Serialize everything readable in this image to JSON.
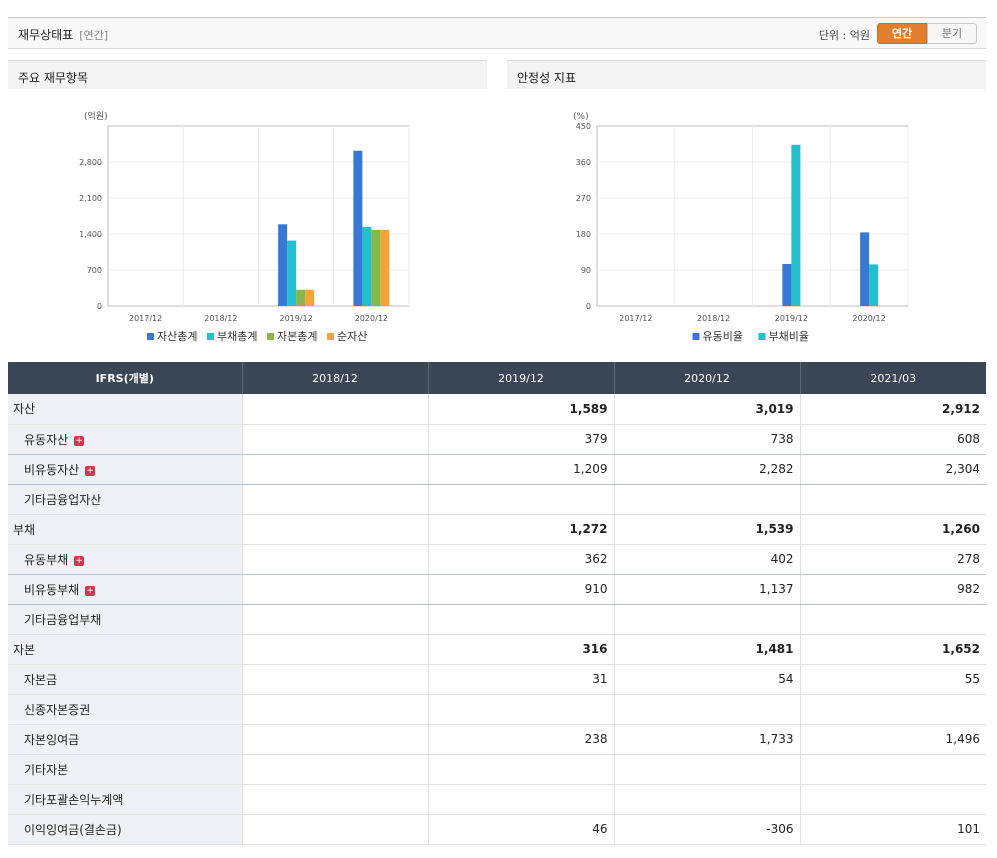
{
  "header": {
    "title": "재무상태표",
    "subtitle": "[연간]",
    "unit_label": "단위 : 억원",
    "toggle_annual": "연간",
    "toggle_quarter": "분기"
  },
  "panels": {
    "left_title": "주요 재무항목",
    "right_title": "안정성 지표"
  },
  "colors": {
    "blue": "#3a78d6",
    "cyan": "#22bfcf",
    "green": "#88b84a",
    "orange": "#f5a538",
    "header_bg": "#3a4656",
    "negative": "#e0262b"
  },
  "chart_data": [
    {
      "type": "bar",
      "unit_label": "(억원)",
      "categories": [
        "2017/12",
        "2018/12",
        "2019/12",
        "2020/12"
      ],
      "ylim": [
        0,
        3500
      ],
      "yticks": [
        0,
        700,
        1400,
        2100,
        2800
      ],
      "ytick_labels": [
        "0",
        "700",
        "1,400",
        "2,100",
        "2,800"
      ],
      "grid": true,
      "legend_position": "bottom",
      "series": [
        {
          "name": "자산총계",
          "color": "#3a78d6",
          "values": [
            null,
            null,
            1589,
            3019
          ]
        },
        {
          "name": "부채총계",
          "color": "#22bfcf",
          "values": [
            null,
            null,
            1272,
            1539
          ]
        },
        {
          "name": "자본총계",
          "color": "#88b84a",
          "values": [
            null,
            null,
            316,
            1481
          ]
        },
        {
          "name": "순자산",
          "color": "#f5a538",
          "values": [
            null,
            null,
            316,
            1481
          ]
        }
      ]
    },
    {
      "type": "bar",
      "unit_label": "(%)",
      "categories": [
        "2017/12",
        "2018/12",
        "2019/12",
        "2020/12"
      ],
      "ylim": [
        0,
        450
      ],
      "yticks": [
        0,
        90,
        180,
        270,
        360,
        450
      ],
      "ytick_labels": [
        "0",
        "90",
        "180",
        "270",
        "360",
        "450"
      ],
      "grid": true,
      "legend_position": "bottom",
      "series": [
        {
          "name": "유동비율",
          "color": "#3a78d6",
          "values": [
            null,
            null,
            105,
            184
          ]
        },
        {
          "name": "부채비율",
          "color": "#22bfcf",
          "values": [
            null,
            null,
            403,
            104
          ]
        }
      ]
    }
  ],
  "table": {
    "columns": [
      "IFRS(개별)",
      "2018/12",
      "2019/12",
      "2020/12",
      "2021/03"
    ],
    "rows": [
      {
        "label": "자산",
        "values": [
          "",
          "1,589",
          "3,019",
          "2,912"
        ]
      },
      {
        "label": "유동자산",
        "values": [
          "",
          "379",
          "738",
          "608"
        ]
      },
      {
        "label": "비유동자산",
        "values": [
          "",
          "1,209",
          "2,282",
          "2,304"
        ]
      },
      {
        "label": "기타금융업자산",
        "values": [
          "",
          "",
          "",
          ""
        ]
      },
      {
        "label": "부채",
        "values": [
          "",
          "1,272",
          "1,539",
          "1,260"
        ]
      },
      {
        "label": "유동부채",
        "values": [
          "",
          "362",
          "402",
          "278"
        ]
      },
      {
        "label": "비유동부채",
        "values": [
          "",
          "910",
          "1,137",
          "982"
        ]
      },
      {
        "label": "기타금융업부채",
        "values": [
          "",
          "",
          "",
          ""
        ]
      },
      {
        "label": "자본",
        "values": [
          "",
          "316",
          "1,481",
          "1,652"
        ]
      },
      {
        "label": "자본금",
        "values": [
          "",
          "31",
          "54",
          "55"
        ]
      },
      {
        "label": "신종자본증권",
        "values": [
          "",
          "",
          "",
          ""
        ]
      },
      {
        "label": "자본잉여금",
        "values": [
          "",
          "238",
          "1,733",
          "1,496"
        ]
      },
      {
        "label": "기타자본",
        "values": [
          "",
          "",
          "",
          ""
        ]
      },
      {
        "label": "기타포괄손익누계액",
        "values": [
          "",
          "",
          "",
          ""
        ]
      },
      {
        "label": "이익잉여금(결손금)",
        "values": [
          "",
          "46",
          "-306",
          "101"
        ]
      }
    ]
  }
}
